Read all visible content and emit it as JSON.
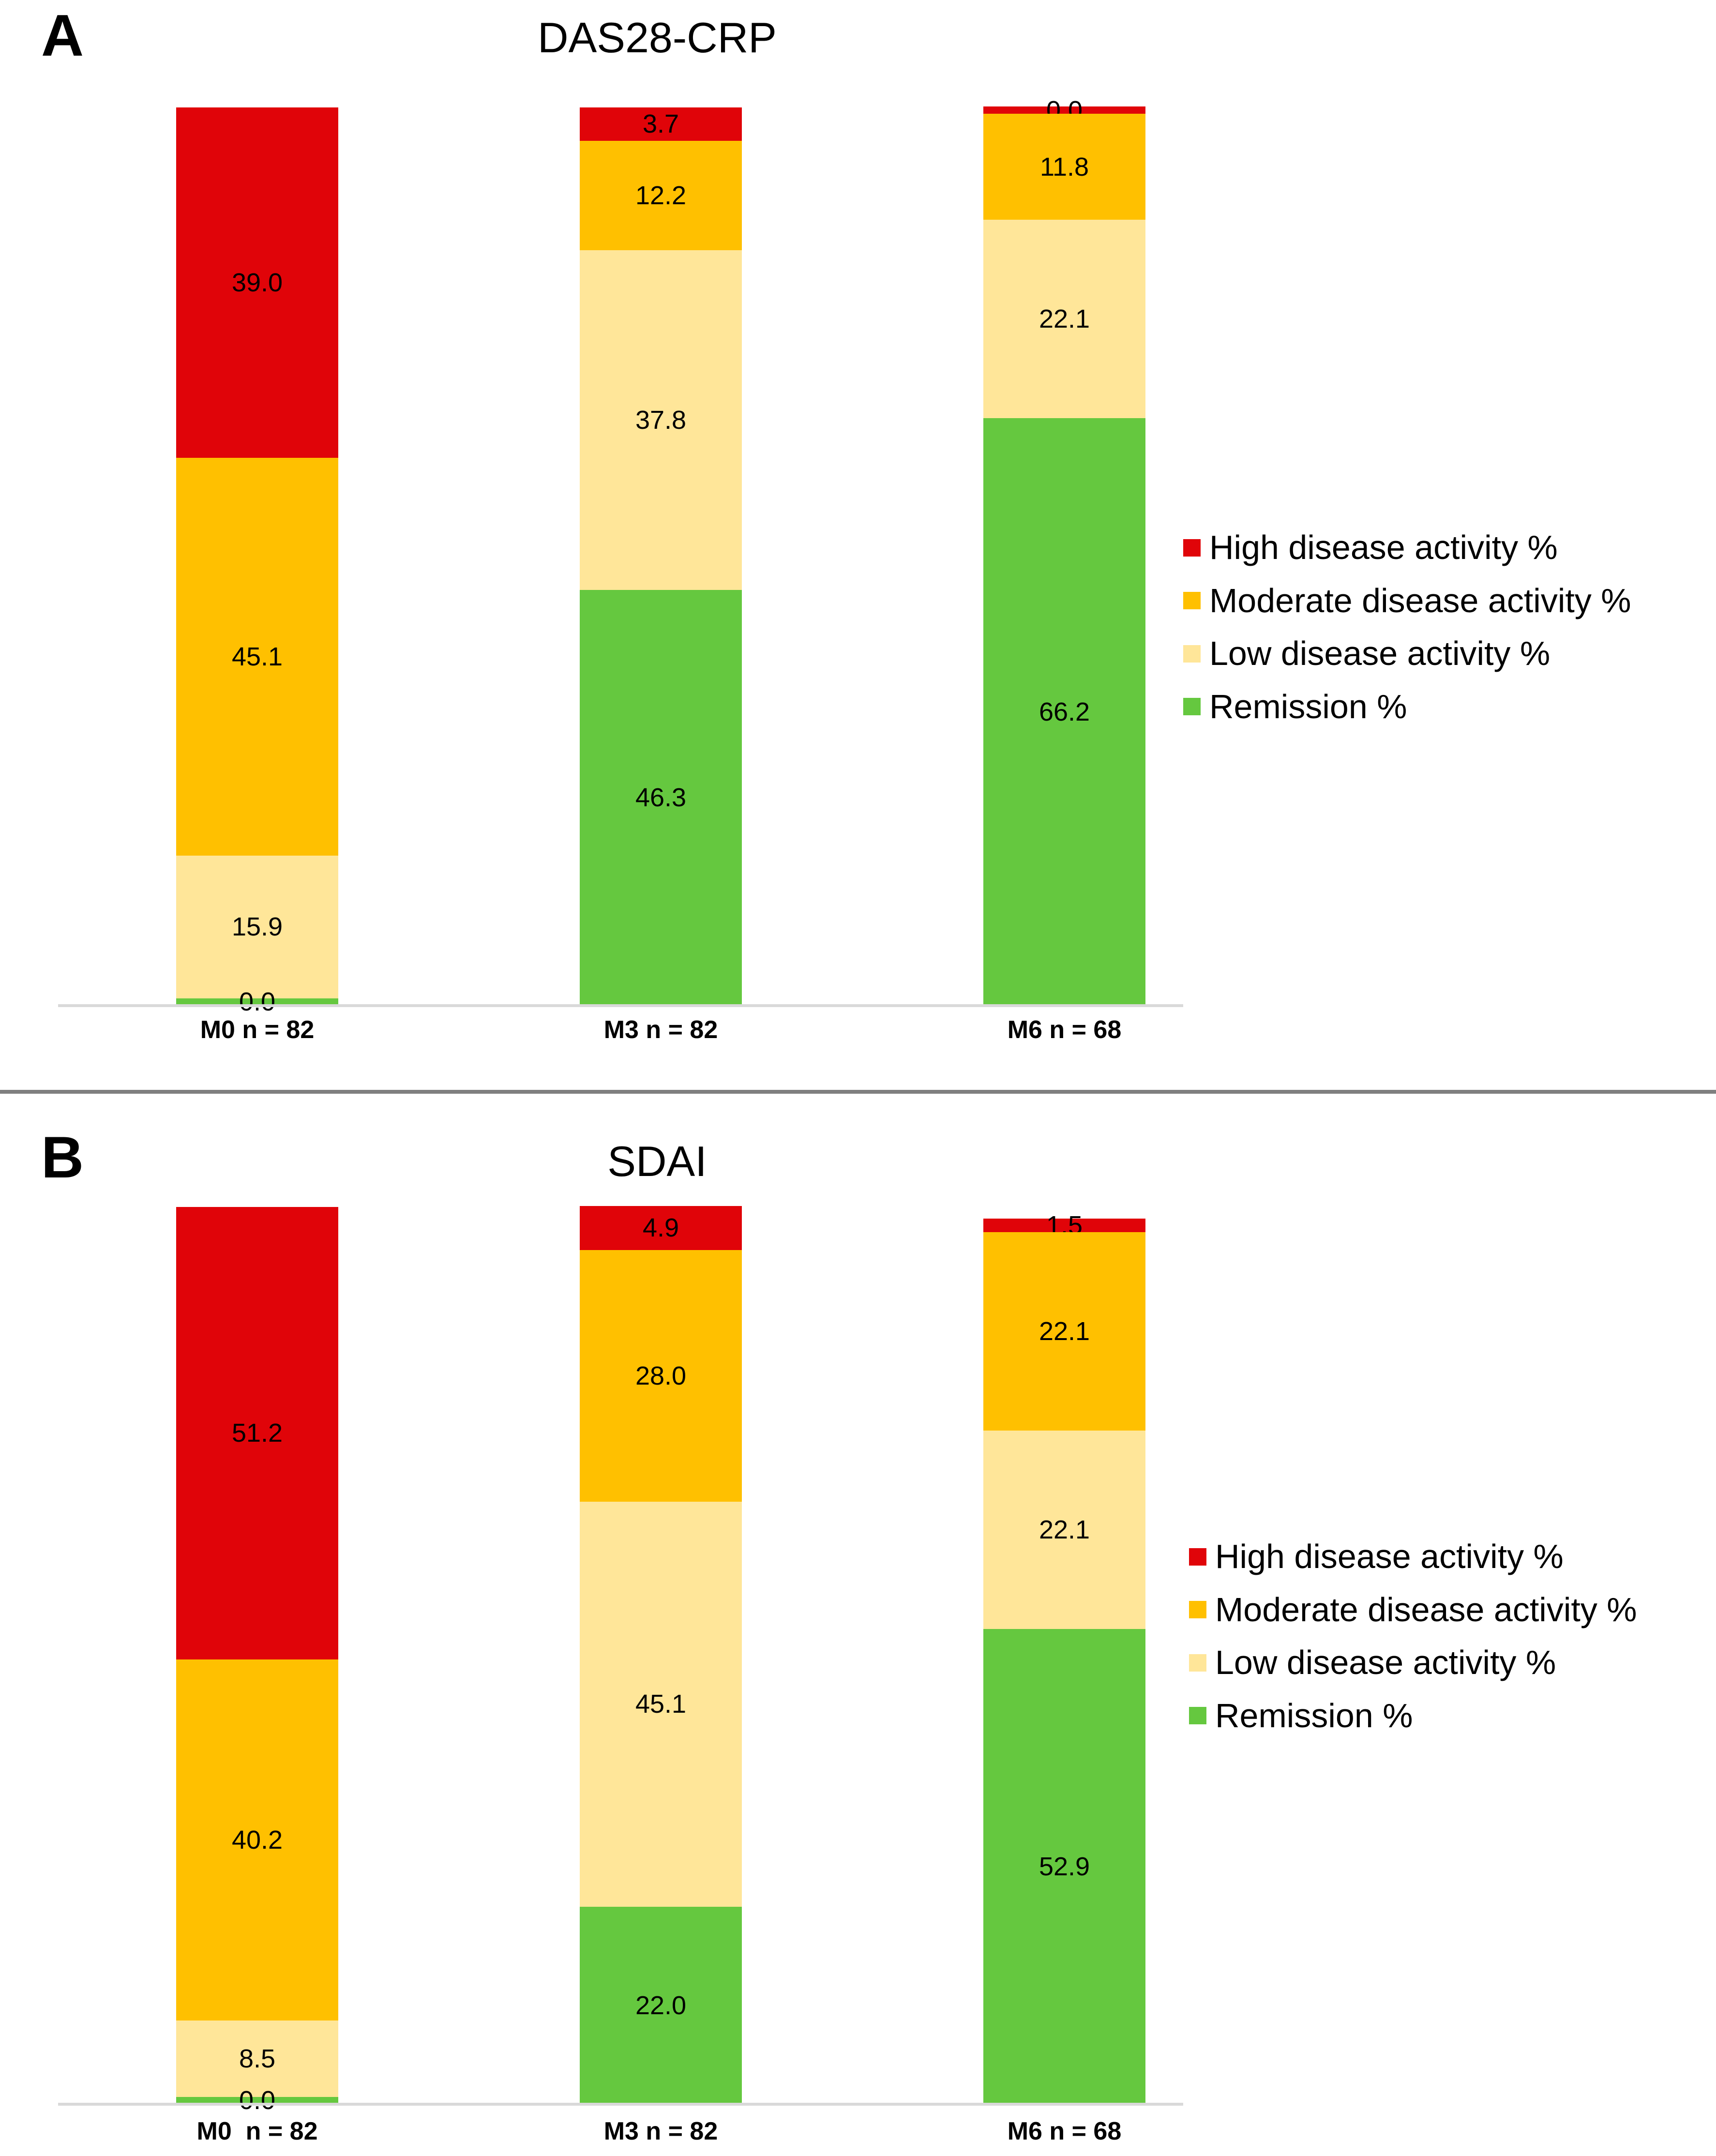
{
  "figure": {
    "background": "#FFFFFF",
    "divider_color": "#7F7F7F",
    "baseline_color": "#D9D9D9",
    "colors": {
      "high": "#E00409",
      "moderate": "#FFC000",
      "low": "#FFE699",
      "remission": "#65C83F"
    }
  },
  "legend_items": [
    {
      "label": "High disease activity %",
      "color_key": "high"
    },
    {
      "label": "Moderate disease activity %",
      "color_key": "moderate"
    },
    {
      "label": "Low disease activity %",
      "color_key": "low"
    },
    {
      "label": "Remission %",
      "color_key": "remission"
    }
  ],
  "chart_data": [
    {
      "type": "bar",
      "subtype": "stacked-percent",
      "panel_letter": "A",
      "title": "DAS28-CRP",
      "categories": [
        "M0 n = 82",
        "M3 n = 82",
        "M6 n = 68"
      ],
      "series": [
        {
          "name": "High disease activity %",
          "color_key": "high",
          "values": [
            39.0,
            3.7,
            0.0
          ]
        },
        {
          "name": "Moderate disease activity %",
          "color_key": "moderate",
          "values": [
            45.1,
            12.2,
            11.8
          ]
        },
        {
          "name": "Low disease activity %",
          "color_key": "low",
          "values": [
            15.9,
            37.8,
            22.1
          ]
        },
        {
          "name": "Remission %",
          "color_key": "remission",
          "values": [
            0.0,
            46.3,
            66.2
          ]
        }
      ],
      "ylim": [
        0,
        100
      ],
      "grid": false,
      "data_labels": true,
      "legend_position": "right"
    },
    {
      "type": "bar",
      "subtype": "stacked-percent",
      "panel_letter": "B",
      "title": "SDAI",
      "categories": [
        "M0  n = 82",
        "M3 n = 82",
        "M6 n = 68"
      ],
      "series": [
        {
          "name": "High disease activity %",
          "color_key": "high",
          "values": [
            51.2,
            4.9,
            1.5
          ]
        },
        {
          "name": "Moderate disease activity %",
          "color_key": "moderate",
          "values": [
            40.2,
            28.0,
            22.1
          ]
        },
        {
          "name": "Low disease activity %",
          "color_key": "low",
          "values": [
            8.5,
            45.1,
            22.1
          ]
        },
        {
          "name": "Remission %",
          "color_key": "remission",
          "values": [
            0.0,
            22.0,
            52.9
          ]
        }
      ],
      "ylim": [
        0,
        100
      ],
      "grid": false,
      "data_labels": true,
      "legend_position": "right"
    }
  ]
}
